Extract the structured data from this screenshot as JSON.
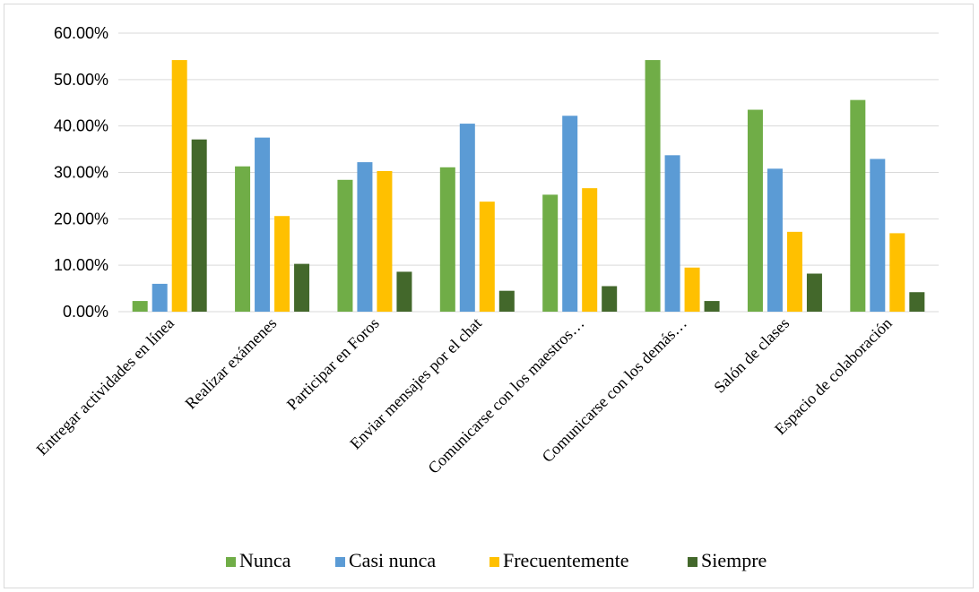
{
  "chart_data": {
    "type": "bar",
    "title": "",
    "xlabel": "",
    "ylabel": "",
    "ylim": [
      0,
      60
    ],
    "y_ticks": [
      "0.00%",
      "10.00%",
      "20.00%",
      "30.00%",
      "40.00%",
      "50.00%",
      "60.00%"
    ],
    "grid": true,
    "legend_position": "bottom",
    "categories": [
      "Entregar actividades en línea",
      "Realizar exámenes",
      "Participar en Foros",
      "Enviar mensajes por el chat",
      "Comunicarse con los maestros…",
      "Comunicarse con los demás…",
      "Salón de clases",
      "Espacio de colaboración"
    ],
    "series": [
      {
        "name": "Nunca",
        "color": "#70ad47",
        "values": [
          2.3,
          31.3,
          28.4,
          31.1,
          25.2,
          54.2,
          43.5,
          45.6
        ]
      },
      {
        "name": "Casi nunca",
        "color": "#5b9bd5",
        "values": [
          6.0,
          37.5,
          32.2,
          40.5,
          42.2,
          33.7,
          30.8,
          32.9
        ]
      },
      {
        "name": "Frecuentemente",
        "color": "#ffc000",
        "values": [
          54.2,
          20.6,
          30.3,
          23.7,
          26.6,
          9.5,
          17.2,
          16.9
        ]
      },
      {
        "name": "Siempre",
        "color": "#43682b",
        "values": [
          37.1,
          10.3,
          8.6,
          4.5,
          5.5,
          2.3,
          8.2,
          4.2
        ]
      }
    ]
  }
}
